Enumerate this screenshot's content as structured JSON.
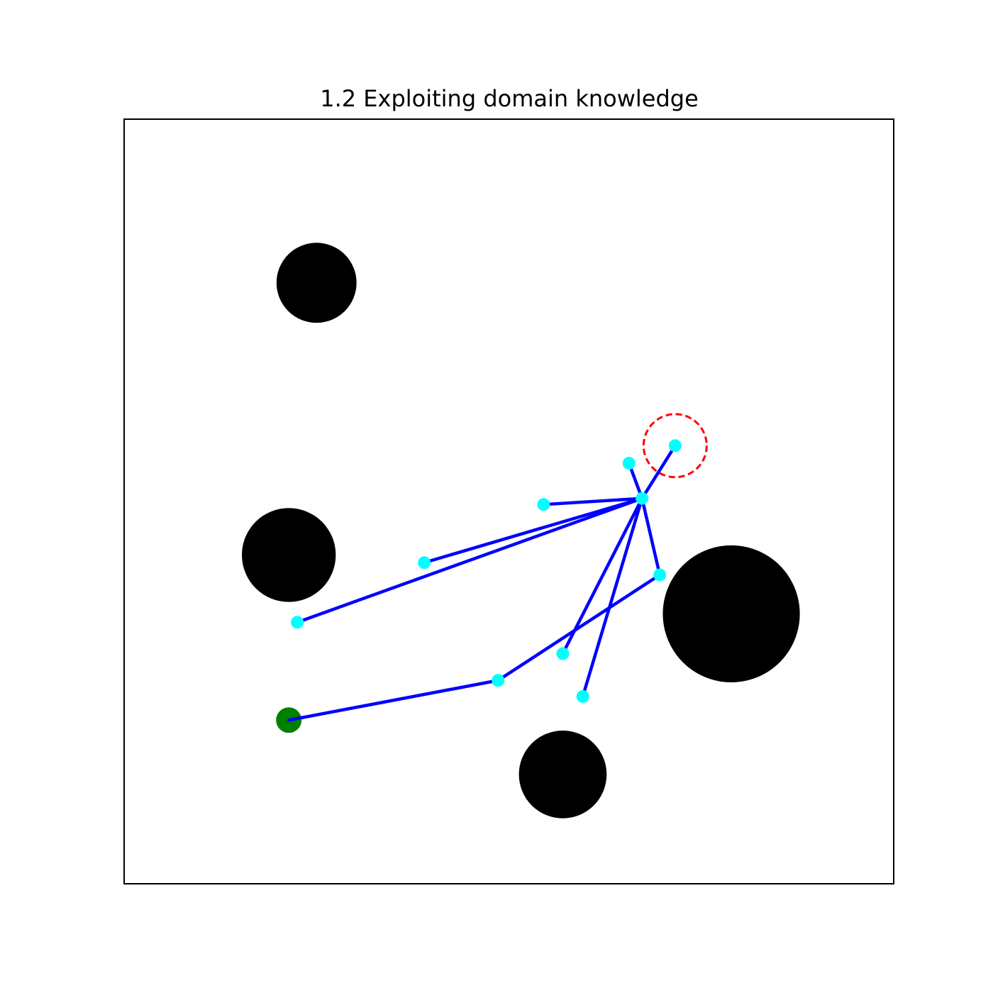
{
  "title": "1.2 Exploiting domain knowledge",
  "colors": {
    "background": "#ffffff",
    "frame": "#000000",
    "obstacle": "#000000",
    "edge": "#0000ff",
    "node": "#00ffff",
    "start": "#008000",
    "goal_region": "#ff0000"
  },
  "chart_data": {
    "type": "scatter",
    "title": "1.2 Exploiting domain knowledge",
    "xlim": [
      0,
      100
    ],
    "ylim": [
      0,
      100
    ],
    "grid": false,
    "axes_ticks": false,
    "obstacles": [
      {
        "x": 25,
        "y": 78.6,
        "r": 5.2
      },
      {
        "x": 21.4,
        "y": 43,
        "r": 6.1
      },
      {
        "x": 78.9,
        "y": 35.3,
        "r": 8.9
      },
      {
        "x": 57,
        "y": 14.3,
        "r": 5.7
      }
    ],
    "start": {
      "x": 21.4,
      "y": 21.4
    },
    "goal": {
      "x": 71.6,
      "y": 57.3,
      "r": 4.1
    },
    "nodes": [
      {
        "id": "start",
        "x": 21.4,
        "y": 21.4
      },
      {
        "id": "n1",
        "x": 48.6,
        "y": 26.6
      },
      {
        "id": "n2",
        "x": 69.6,
        "y": 40.4
      },
      {
        "id": "n3",
        "x": 67.3,
        "y": 50.4
      },
      {
        "id": "n4",
        "x": 65.6,
        "y": 55
      },
      {
        "id": "n5",
        "x": 71.6,
        "y": 57.3
      },
      {
        "id": "n6",
        "x": 54.5,
        "y": 49.6
      },
      {
        "id": "n7",
        "x": 39,
        "y": 42
      },
      {
        "id": "n8",
        "x": 22.5,
        "y": 34.2
      },
      {
        "id": "n9",
        "x": 57,
        "y": 30.1
      },
      {
        "id": "n10",
        "x": 59.6,
        "y": 24.5
      }
    ],
    "edges": [
      [
        "start",
        "n1"
      ],
      [
        "n1",
        "n2"
      ],
      [
        "n2",
        "n3"
      ],
      [
        "n3",
        "n4"
      ],
      [
        "n3",
        "n5"
      ],
      [
        "n3",
        "n6"
      ],
      [
        "n3",
        "n7"
      ],
      [
        "n3",
        "n8"
      ],
      [
        "n3",
        "n9"
      ],
      [
        "n3",
        "n10"
      ]
    ]
  }
}
